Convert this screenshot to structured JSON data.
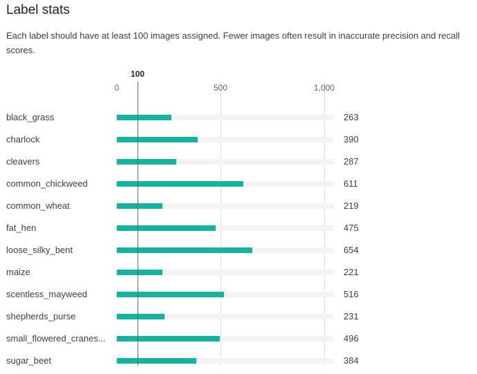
{
  "header": {
    "title": "Label stats",
    "description": "Each label should have at least 100 images assigned. Fewer images often result in inaccurate precision and recall scores."
  },
  "chart_data": {
    "type": "bar",
    "orientation": "horizontal",
    "threshold": 100,
    "threshold_label": "100",
    "x_ticks": [
      0,
      500,
      1000
    ],
    "x_tick_labels": [
      "0",
      "500",
      "1,000"
    ],
    "xlim": [
      0,
      1000
    ],
    "bar_color": "#12b5a0",
    "categories": [
      "black_grass",
      "charlock",
      "cleavers",
      "common_chickweed",
      "common_wheat",
      "fat_hen",
      "loose_silky_bent",
      "maize",
      "scentless_mayweed",
      "shepherds_purse",
      "small_flowered_cranes...",
      "sugar_beet"
    ],
    "values": [
      263,
      390,
      287,
      611,
      219,
      475,
      654,
      221,
      516,
      231,
      496,
      384
    ],
    "value_labels": [
      "263",
      "390",
      "287",
      "611",
      "219",
      "475",
      "654",
      "221",
      "516",
      "231",
      "496",
      "384"
    ]
  }
}
